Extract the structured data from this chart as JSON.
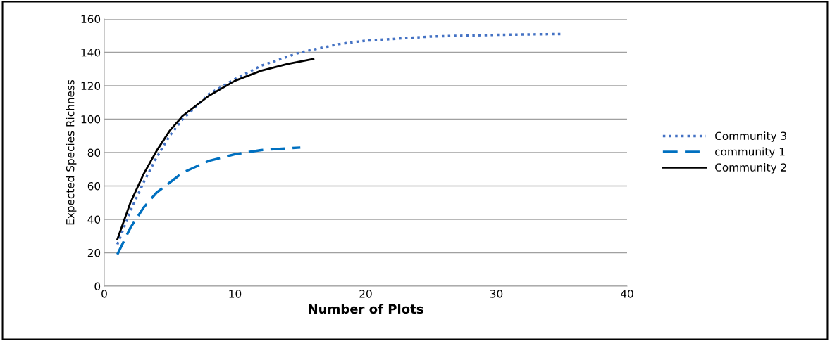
{
  "chart_data": {
    "type": "line",
    "xlabel": "Number of Plots",
    "ylabel": "Expected Species Richness",
    "xlim": [
      0,
      40
    ],
    "xticks": [
      0,
      10,
      20,
      30,
      40
    ],
    "ylim": [
      0,
      160
    ],
    "yticks": [
      0,
      20,
      40,
      60,
      80,
      100,
      120,
      140,
      160
    ],
    "grid": "y",
    "legend": "right",
    "marker": "none",
    "series": [
      {
        "name": "Community 3",
        "color": "#4472c4",
        "line_style": "dotted",
        "x": [
          1,
          2,
          3,
          4,
          5,
          6,
          8,
          10,
          12,
          15,
          18,
          20,
          25,
          30,
          35
        ],
        "values": [
          25,
          45,
          62,
          77,
          90,
          100,
          115,
          124,
          132,
          140,
          145,
          147,
          149.5,
          150.5,
          151
        ]
      },
      {
        "name": "community 1",
        "color": "#0070c0",
        "line_style": "dashed",
        "x": [
          1,
          2,
          3,
          4,
          5,
          6,
          8,
          10,
          12,
          15
        ],
        "values": [
          19,
          35,
          47,
          56,
          62,
          68,
          75,
          79,
          81.5,
          83
        ]
      },
      {
        "name": "Community 2",
        "color": "#000000",
        "line_style": "solid",
        "x": [
          1,
          2,
          3,
          4,
          5,
          6,
          8,
          10,
          12,
          14,
          16
        ],
        "values": [
          28,
          50,
          67,
          81,
          93,
          102,
          114,
          123,
          129,
          133,
          136
        ]
      }
    ]
  }
}
